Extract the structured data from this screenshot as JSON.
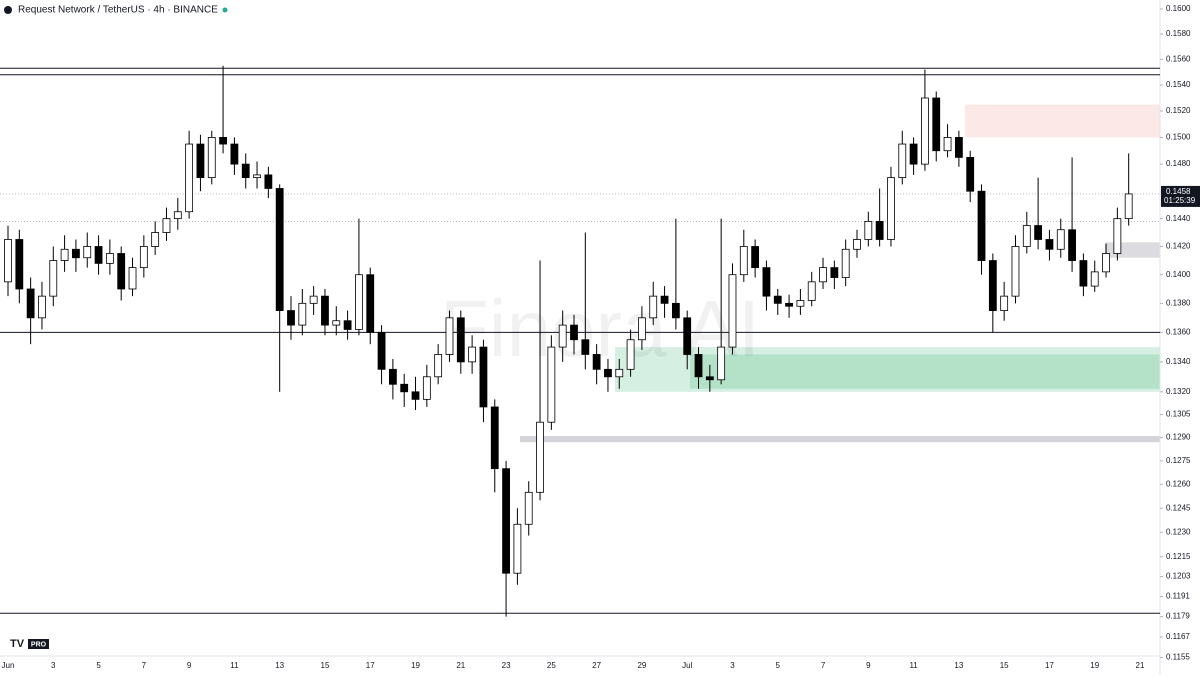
{
  "chart_data": {
    "type": "candlestick",
    "title": "Request Network / TetherUS · 4h · BINANCE",
    "watermark": "Finora AI",
    "logo": "PRO",
    "log_scale": true,
    "up_color": "#ffffff",
    "down_color": "#000000",
    "open": [
      0.1395,
      0.1425,
      0.139,
      0.137,
      0.1385,
      0.141,
      0.1418,
      0.1412,
      0.142,
      0.1408,
      0.1415,
      0.139,
      0.1405,
      0.142,
      0.143,
      0.144,
      0.1445,
      0.1495,
      0.147,
      0.15,
      0.1495,
      0.148,
      0.147,
      0.1472,
      0.1462,
      0.1375,
      0.1365,
      0.138,
      0.1385,
      0.1365,
      0.1368,
      0.1362,
      0.14,
      0.136,
      0.1335,
      0.1325,
      0.132,
      0.1315,
      0.133,
      0.1345,
      0.137,
      0.134,
      0.135,
      0.131,
      0.127,
      0.1205,
      0.1235,
      0.1255,
      0.13,
      0.135,
      0.1365,
      0.1355,
      0.1345,
      0.1335,
      0.133,
      0.1335,
      0.1355,
      0.137,
      0.1385,
      0.138,
      0.137,
      0.1345,
      0.133,
      0.1328,
      0.135,
      0.14,
      0.142,
      0.1405,
      0.1385,
      0.138,
      0.1378,
      0.1382,
      0.1395,
      0.1405,
      0.1398,
      0.1418,
      0.1425,
      0.1438,
      0.1425,
      0.147,
      0.1495,
      0.148,
      0.153,
      0.149,
      0.15,
      0.1485,
      0.146,
      0.141,
      0.1375,
      0.1385,
      0.142,
      0.1435,
      0.1425,
      0.1418,
      0.1432,
      0.141,
      0.1392,
      0.1402,
      0.1415,
      0.144
    ],
    "high": [
      0.1435,
      0.1432,
      0.1398,
      0.1395,
      0.142,
      0.1428,
      0.1425,
      0.143,
      0.1428,
      0.1425,
      0.142,
      0.1412,
      0.1428,
      0.1438,
      0.1448,
      0.1455,
      0.1505,
      0.1502,
      0.1505,
      0.1555,
      0.15,
      0.1488,
      0.1482,
      0.1478,
      0.1465,
      0.1385,
      0.139,
      0.1392,
      0.139,
      0.1378,
      0.1375,
      0.144,
      0.1405,
      0.1365,
      0.1342,
      0.1332,
      0.133,
      0.1338,
      0.1352,
      0.1375,
      0.1375,
      0.1358,
      0.1355,
      0.1315,
      0.1275,
      0.1245,
      0.1262,
      0.141,
      0.1358,
      0.1375,
      0.1372,
      0.143,
      0.1352,
      0.1342,
      0.1342,
      0.1362,
      0.1378,
      0.1395,
      0.1392,
      0.144,
      0.1375,
      0.135,
      0.1338,
      0.144,
      0.1408,
      0.1432,
      0.1425,
      0.141,
      0.139,
      0.1386,
      0.139,
      0.1402,
      0.1412,
      0.141,
      0.1425,
      0.1432,
      0.1445,
      0.1462,
      0.1478,
      0.1505,
      0.15,
      0.1552,
      0.1535,
      0.151,
      0.1505,
      0.149,
      0.1465,
      0.1415,
      0.1395,
      0.1428,
      0.1445,
      0.147,
      0.1432,
      0.144,
      0.1485,
      0.1415,
      0.141,
      0.1422,
      0.1448,
      0.1488
    ],
    "low": [
      0.1385,
      0.138,
      0.1352,
      0.1362,
      0.1378,
      0.1402,
      0.1402,
      0.1405,
      0.14,
      0.14,
      0.1382,
      0.1385,
      0.1398,
      0.1414,
      0.1424,
      0.1432,
      0.144,
      0.146,
      0.1465,
      0.1488,
      0.1472,
      0.1462,
      0.1462,
      0.1455,
      0.132,
      0.1355,
      0.1358,
      0.1372,
      0.1358,
      0.1358,
      0.1355,
      0.1358,
      0.1352,
      0.1325,
      0.1315,
      0.131,
      0.1308,
      0.131,
      0.1325,
      0.134,
      0.1332,
      0.1332,
      0.13,
      0.1255,
      0.1179,
      0.1198,
      0.1228,
      0.125,
      0.1295,
      0.134,
      0.1345,
      0.1335,
      0.1325,
      0.132,
      0.1322,
      0.133,
      0.1348,
      0.1365,
      0.137,
      0.1362,
      0.1335,
      0.1322,
      0.132,
      0.1325,
      0.1345,
      0.1395,
      0.1398,
      0.1375,
      0.1372,
      0.137,
      0.1372,
      0.1378,
      0.139,
      0.139,
      0.1392,
      0.1412,
      0.142,
      0.142,
      0.142,
      0.1465,
      0.1472,
      0.1475,
      0.1482,
      0.1485,
      0.1478,
      0.1452,
      0.14,
      0.136,
      0.1368,
      0.138,
      0.1415,
      0.1418,
      0.141,
      0.1412,
      0.1402,
      0.1385,
      0.1388,
      0.1398,
      0.141,
      0.1435
    ],
    "close": [
      0.1425,
      0.139,
      0.137,
      0.1385,
      0.141,
      0.1418,
      0.1412,
      0.142,
      0.1408,
      0.1415,
      0.139,
      0.1405,
      0.142,
      0.143,
      0.144,
      0.1445,
      0.1495,
      0.147,
      0.15,
      0.1495,
      0.148,
      0.147,
      0.1472,
      0.1462,
      0.1375,
      0.1365,
      0.138,
      0.1385,
      0.1365,
      0.1368,
      0.1362,
      0.14,
      0.136,
      0.1335,
      0.1325,
      0.132,
      0.1315,
      0.133,
      0.1345,
      0.137,
      0.134,
      0.135,
      0.131,
      0.127,
      0.1205,
      0.1235,
      0.1255,
      0.13,
      0.135,
      0.1365,
      0.1355,
      0.1345,
      0.1335,
      0.133,
      0.1335,
      0.1355,
      0.137,
      0.1385,
      0.138,
      0.137,
      0.1345,
      0.133,
      0.1328,
      0.135,
      0.14,
      0.142,
      0.1405,
      0.1385,
      0.138,
      0.1378,
      0.1382,
      0.1395,
      0.1405,
      0.1398,
      0.1418,
      0.1425,
      0.1438,
      0.1425,
      0.147,
      0.1495,
      0.148,
      0.153,
      0.149,
      0.15,
      0.1485,
      0.146,
      0.141,
      0.1375,
      0.1385,
      0.142,
      0.1435,
      0.1425,
      0.1418,
      0.1432,
      0.141,
      0.1392,
      0.1402,
      0.1415,
      0.144,
      0.1458
    ],
    "ylim": [
      0.1153,
      0.1604
    ],
    "yticks": [
      {
        "value": 0.16,
        "label": "0.1600"
      },
      {
        "value": 0.158,
        "label": "0.1580"
      },
      {
        "value": 0.156,
        "label": "0.1560"
      },
      {
        "value": 0.154,
        "label": "0.1540"
      },
      {
        "value": 0.152,
        "label": "0.1520"
      },
      {
        "value": 0.15,
        "label": "0.1500"
      },
      {
        "value": 0.148,
        "label": "0.1480"
      },
      {
        "value": 0.144,
        "label": "0.1440"
      },
      {
        "value": 0.142,
        "label": "0.1420"
      },
      {
        "value": 0.14,
        "label": "0.1400"
      },
      {
        "value": 0.138,
        "label": "0.1380"
      },
      {
        "value": 0.136,
        "label": "0.1360"
      },
      {
        "value": 0.134,
        "label": "0.1340"
      },
      {
        "value": 0.132,
        "label": "0.1320"
      },
      0.1305,
      {
        "value": 0.129,
        "label": "0.1290"
      },
      0.1275,
      {
        "value": 0.126,
        "label": "0.1260"
      },
      0.1245,
      {
        "value": 0.123,
        "label": "0.1230"
      },
      0.1215,
      0.1203,
      0.1191,
      0.1179,
      0.1167,
      0.1155
    ],
    "xticks": [
      "Jun",
      "3",
      "5",
      "7",
      "9",
      "11",
      "13",
      "15",
      "17",
      "19",
      "21",
      "23",
      "25",
      "27",
      "29",
      "Jul",
      "3",
      "5",
      "7",
      "9",
      "11",
      "13",
      "15",
      "17",
      "19",
      "21"
    ],
    "last_price": 0.1458,
    "countdown": "01:25:39",
    "levels": [
      0.1553,
      0.1548,
      0.136,
      0.1181
    ],
    "dotted_levels": [
      0.1458,
      0.1438
    ],
    "zones": [
      {
        "top": 0.1525,
        "bottom": 0.15,
        "color": "#fde8e8"
      },
      {
        "top": 0.135,
        "bottom": 0.132,
        "color": "#d6efe3"
      },
      {
        "top": 0.1345,
        "bottom": 0.1322,
        "color": "#b3e2c8"
      },
      {
        "top": 0.1291,
        "bottom": 0.1287,
        "color": "#d3d3da"
      },
      {
        "top": 0.1423,
        "bottom": 0.1412,
        "color": "#dcdce0"
      }
    ]
  }
}
